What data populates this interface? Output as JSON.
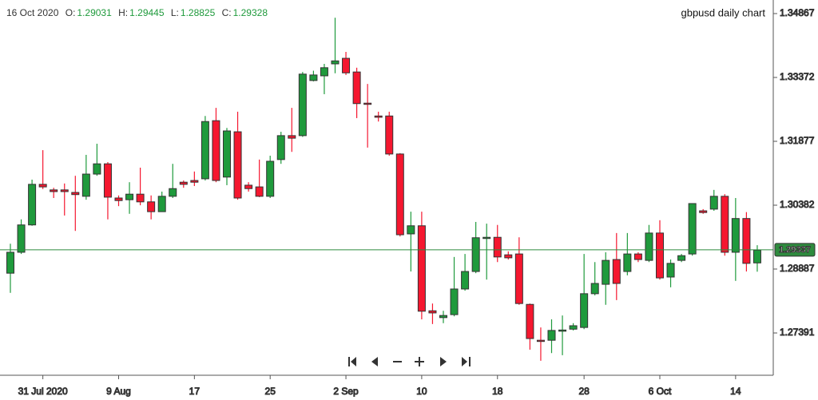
{
  "chart_data": {
    "type": "candlestick",
    "title": "gbpusd daily chart",
    "header": {
      "date": "16 Oct 2020",
      "fields": [
        {
          "label": "O:",
          "value": "1.29031"
        },
        {
          "label": "H:",
          "value": "1.29445"
        },
        {
          "label": "L:",
          "value": "1.28825"
        },
        {
          "label": "C:",
          "value": "1.29328"
        }
      ]
    },
    "categories": [
      null,
      null,
      null,
      "31 Jul 2020",
      null,
      null,
      null,
      null,
      null,
      null,
      "9 Aug",
      null,
      null,
      null,
      null,
      null,
      null,
      "17",
      null,
      null,
      null,
      null,
      null,
      null,
      "25",
      null,
      null,
      null,
      null,
      null,
      null,
      "2 Sep",
      null,
      null,
      null,
      null,
      null,
      null,
      "10",
      null,
      null,
      null,
      null,
      null,
      null,
      "18",
      null,
      null,
      null,
      null,
      null,
      null,
      null,
      "28",
      null,
      null,
      null,
      null,
      null,
      null,
      "6 Oct",
      null,
      null,
      null,
      null,
      null,
      null,
      "14",
      null,
      null
    ],
    "open": [
      1.2879,
      1.2928,
      1.2992,
      1.3087,
      1.3074,
      1.3074,
      1.3068,
      1.3059,
      1.3111,
      1.3135,
      1.3055,
      1.3051,
      1.3064,
      1.3046,
      1.3023,
      1.3059,
      1.3092,
      1.3096,
      1.31,
      1.3236,
      1.3104,
      1.321,
      1.3085,
      1.3081,
      1.3059,
      1.3145,
      1.3201,
      1.3201,
      1.333,
      1.3341,
      1.3369,
      1.3382,
      1.335,
      1.3277,
      1.3247,
      1.3247,
      1.3158,
      1.2971,
      1.299,
      1.2791,
      1.2775,
      1.2782,
      1.2842,
      1.2883,
      1.2962,
      1.2963,
      1.2922,
      1.2924,
      1.2806,
      1.2722,
      1.2722,
      1.2745,
      1.2748,
      1.2752,
      1.2831,
      1.2853,
      1.2911,
      1.2883,
      1.2924,
      1.2909,
      1.2973,
      1.287,
      1.2909,
      1.2924,
      1.3025,
      1.3029,
      1.3059,
      1.2928,
      1.3007,
      1.29031
    ],
    "high": [
      1.2948,
      1.3005,
      1.3098,
      1.3167,
      1.3079,
      1.3089,
      1.3107,
      1.3156,
      1.3182,
      1.3139,
      1.3061,
      1.3092,
      1.3126,
      1.3061,
      1.307,
      1.3135,
      1.3096,
      1.3117,
      1.3247,
      1.3266,
      1.3219,
      1.3257,
      1.3092,
      1.3145,
      1.3154,
      1.321,
      1.3266,
      1.335,
      1.3353,
      1.3369,
      1.3477,
      1.3397,
      1.336,
      1.3322,
      1.3257,
      1.3257,
      1.316,
      1.3023,
      1.3023,
      1.2808,
      1.2791,
      1.2917,
      1.2924,
      1.2999,
      1.2995,
      1.2992,
      1.293,
      1.2963,
      1.2808,
      1.2752,
      1.2771,
      1.278,
      1.2762,
      1.2924,
      1.2905,
      1.2928,
      1.2973,
      1.2973,
      1.2928,
      1.2992,
      1.3003,
      1.2911,
      1.2924,
      1.3042,
      1.3029,
      1.3074,
      1.3064,
      1.3055,
      1.3022,
      1.29445
    ],
    "low": [
      1.2833,
      1.2924,
      1.299,
      1.3076,
      1.3055,
      1.3014,
      1.2978,
      1.3051,
      1.3107,
      1.3005,
      1.3036,
      1.3018,
      1.3038,
      1.3005,
      1.3023,
      1.3055,
      1.3079,
      1.3083,
      1.3096,
      1.3092,
      1.3085,
      1.3051,
      1.307,
      1.3057,
      1.3055,
      1.3135,
      1.3163,
      1.3198,
      1.3328,
      1.3298,
      1.3347,
      1.3343,
      1.3242,
      1.3173,
      1.3234,
      1.3154,
      1.2965,
      1.2883,
      1.2771,
      1.276,
      1.2762,
      1.2778,
      1.2838,
      1.2879,
      1.2864,
      1.2905,
      1.2911,
      1.2805,
      1.27,
      1.2674,
      1.2692,
      1.2687,
      1.2745,
      1.2748,
      1.2827,
      1.2805,
      1.2816,
      1.2874,
      1.2905,
      1.2905,
      1.2864,
      1.2846,
      1.2905,
      1.292,
      1.3018,
      1.3025,
      1.292,
      1.2861,
      1.2883,
      1.28825
    ],
    "close": [
      1.2928,
      1.2992,
      1.3087,
      1.3081,
      1.307,
      1.307,
      1.3063,
      1.3111,
      1.3135,
      1.3057,
      1.3049,
      1.3064,
      1.3046,
      1.3023,
      1.3059,
      1.3077,
      1.3087,
      1.3092,
      1.3234,
      1.3096,
      1.3212,
      1.3055,
      1.3077,
      1.3059,
      1.3141,
      1.3201,
      1.3195,
      1.3345,
      1.3343,
      1.336,
      1.3376,
      1.3348,
      1.3276,
      1.3276,
      1.3244,
      1.3158,
      1.2969,
      1.299,
      1.279,
      1.2786,
      1.278,
      1.2842,
      1.2883,
      1.2962,
      1.2963,
      1.2917,
      1.2915,
      1.2808,
      1.2726,
      1.272,
      1.2745,
      1.2746,
      1.2756,
      1.2831,
      1.2855,
      1.2909,
      1.2855,
      1.2924,
      1.2911,
      1.2973,
      1.2868,
      1.2902,
      1.292,
      1.3042,
      1.3021,
      1.3059,
      1.2928,
      1.3007,
      1.2902,
      1.29328
    ],
    "up_color": "#1f9a3c",
    "down_color": "#f5172f",
    "last_price": 1.29337,
    "last_price_color": "#2e8b3e",
    "ylim": [
      1.26401,
      1.35185
    ],
    "yticks": [
      1.34867,
      1.33372,
      1.31877,
      1.30382,
      1.28887,
      1.27391
    ]
  }
}
